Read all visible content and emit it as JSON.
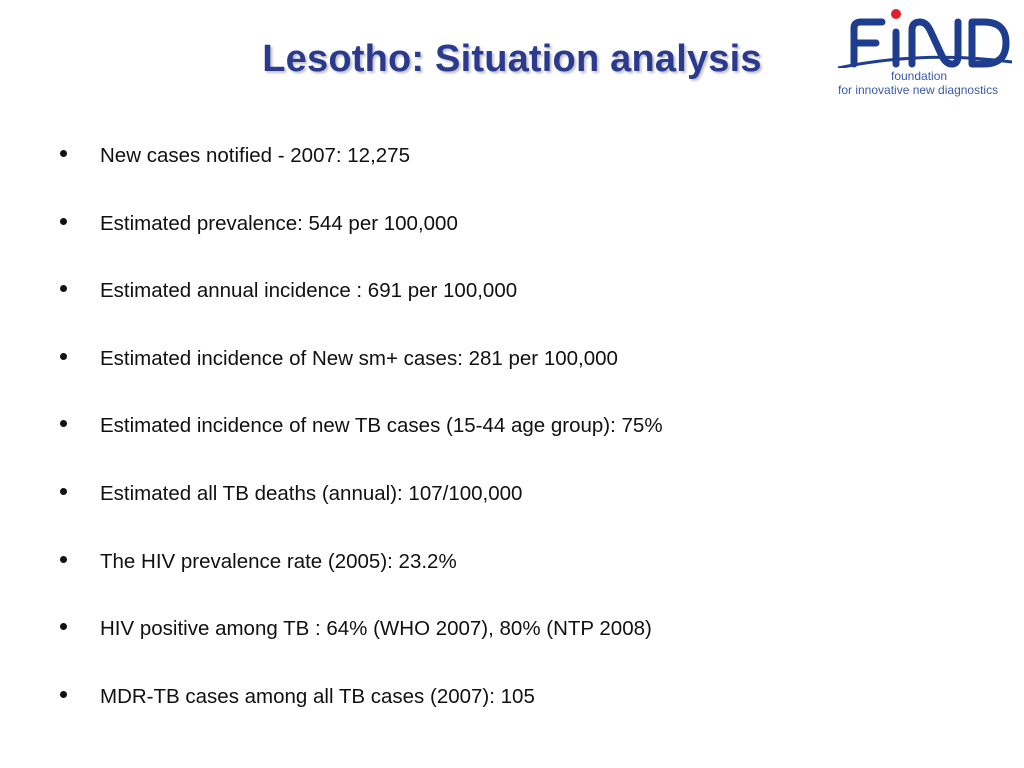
{
  "slide": {
    "title": "Lesotho: Situation analysis",
    "logo": {
      "wordmark": "FIND",
      "line1": "foundation",
      "line2": "for innovative new diagnostics",
      "primary_color": "#1e3d8f",
      "accent_color": "#e0202a"
    },
    "bullets": [
      "New cases notified - 2007: 12,275",
      "Estimated prevalence:  544 per 100,000",
      "Estimated annual incidence : 691 per 100,000",
      "Estimated incidence of New sm+ cases: 281 per 100,000",
      "Estimated incidence of new TB cases (15-44  age group):  75%",
      "Estimated all TB deaths (annual): 107/100,000",
      "The HIV prevalence rate (2005):  23.2%",
      "HIV positive among TB : 64%  (WHO 2007), 80% (NTP 2008)",
      "MDR-TB cases among all TB cases (2007): 105"
    ]
  }
}
